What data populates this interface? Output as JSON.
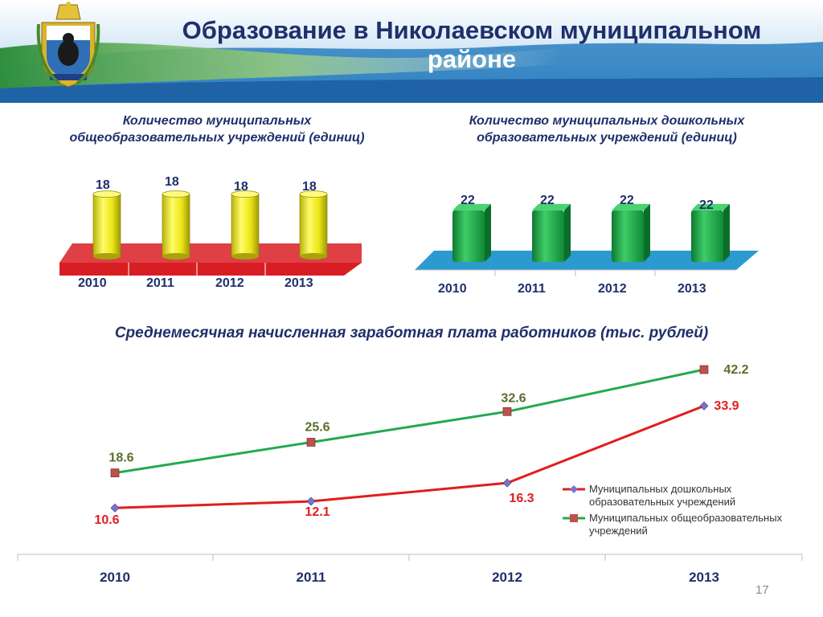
{
  "title": {
    "line1": "Образование в Николаевском муниципальном",
    "line2": "районе"
  },
  "emblem_icon": "khabarovsk-coat-of-arms-icon",
  "slide_number": "17",
  "colors": {
    "title": "#1f2f6b",
    "yellow_bar": "#f2ee1c",
    "red_floor": "#d81e24",
    "green_bar": "#1aa547",
    "blue_floor": "#2a9ad0",
    "line_preschool": "#e01e1e",
    "line_general": "#22aa4e",
    "marker_preschool": "#7a74c8",
    "marker_general": "#c0504d",
    "label_general": "#5a6e2a"
  },
  "chart_data": [
    {
      "type": "bar",
      "title": "Количество муниципальных общеобразовательных учреждений (единиц)",
      "categories": [
        "2010",
        "2011",
        "2012",
        "2013"
      ],
      "values": [
        18,
        18,
        18,
        18
      ],
      "ylim": [
        0,
        20
      ],
      "grid": false,
      "style": "3d-cylinder"
    },
    {
      "type": "bar",
      "title": "Количество муниципальных дошкольных образовательных учреждений (единиц)",
      "categories": [
        "2010",
        "2011",
        "2012",
        "2013"
      ],
      "values": [
        22,
        22,
        22,
        22
      ],
      "ylim": [
        0,
        24
      ],
      "grid": false,
      "style": "3d-box"
    },
    {
      "type": "line",
      "title": "Среднемесячная начисленная заработная плата работников (тыс. рублей)",
      "categories": [
        "2010",
        "2011",
        "2012",
        "2013"
      ],
      "series": [
        {
          "name": "Муниципальных дошкольных образовательных учреждений",
          "values": [
            10.6,
            12.1,
            16.3,
            33.9
          ]
        },
        {
          "name": "Муниципальных общеобразовательных учреждений",
          "values": [
            18.6,
            25.6,
            32.6,
            42.2
          ]
        }
      ],
      "ylim": [
        0,
        45
      ],
      "grid": false,
      "legend": "right"
    }
  ]
}
